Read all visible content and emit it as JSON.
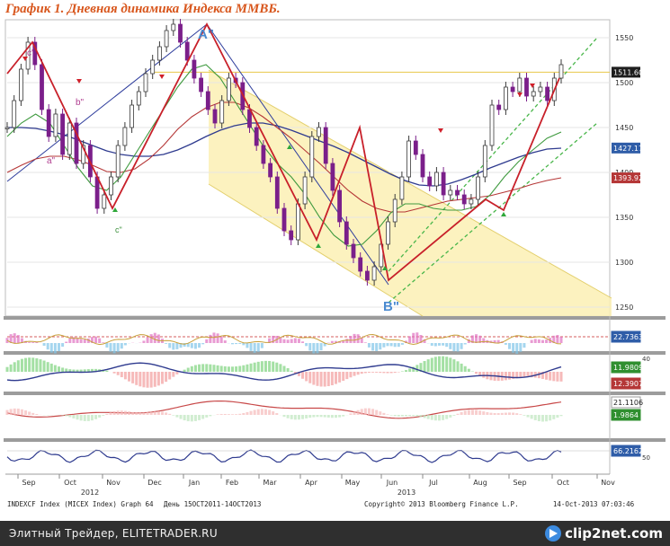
{
  "title": "График 1.   Дневная динамика Индекса ММВБ.",
  "footer": {
    "caption": "Элитный Трейдер, ELITETRADER.RU",
    "logo": "clip2net.com"
  },
  "bloomberg": {
    "left": "INDEXCF Index (MICEX Index) Graph 64",
    "mid": "День 15OCT2011-14OCT2013",
    "copy": "Copyright© 2013 Bloomberg Finance L.P.",
    "right": "14-Oct-2013 07:03:46"
  },
  "annotations": {
    "a_top": "A\"",
    "b_bottom": "B\"",
    "c_small": "c'",
    "c_low": "c\"",
    "b_small": "b\"",
    "a_small": "a\""
  },
  "colors": {
    "price_up": "#3a3a3a",
    "price_down": "#7b1f8a",
    "zigzag": "#c8202a",
    "trend_blue": "#2e3d9c",
    "channel_fill": "#fbf0b4",
    "channel_green": "#49b64a",
    "ma_green": "#3f9a3f",
    "ma_red": "#b53737",
    "ma_blue": "#2f3b8f",
    "level_line": "#e8c84a"
  },
  "chart_data": {
    "type": "line",
    "title": "График 1.   Дневная динамика Индекса ММВБ.",
    "x_axis": {
      "months": [
        "Sep",
        "Oct",
        "Nov",
        "Dec",
        "Jan",
        "Feb",
        "Mar",
        "Apr",
        "May",
        "Jun",
        "Jul",
        "Aug",
        "Sep",
        "Oct",
        "Nov"
      ],
      "years": [
        "2012",
        "2013"
      ]
    },
    "y_axis": {
      "ticks": [
        1250,
        1300,
        1350,
        1400,
        1450,
        1500,
        1550
      ],
      "range": [
        1240,
        1570
      ]
    },
    "series": [
      {
        "key": "price",
        "values": [
          1450,
          1480,
          1515,
          1545,
          1520,
          1470,
          1440,
          1465,
          1420,
          1455,
          1410,
          1430,
          1395,
          1360,
          1375,
          1395,
          1430,
          1450,
          1475,
          1490,
          1510,
          1525,
          1540,
          1558,
          1565,
          1545,
          1525,
          1505,
          1490,
          1470,
          1455,
          1480,
          1505,
          1500,
          1470,
          1450,
          1430,
          1410,
          1395,
          1360,
          1335,
          1325,
          1365,
          1395,
          1440,
          1450,
          1410,
          1380,
          1345,
          1320,
          1305,
          1290,
          1280,
          1295,
          1320,
          1345,
          1370,
          1395,
          1435,
          1420,
          1395,
          1385,
          1400,
          1375,
          1380,
          1375,
          1365,
          1370,
          1395,
          1430,
          1475,
          1470,
          1495,
          1490,
          1505,
          1485,
          1490,
          1495,
          1480,
          1505,
          1520
        ]
      },
      {
        "key": "ma_blue",
        "values": [
          1450,
          1450,
          1449,
          1446,
          1442,
          1436,
          1430,
          1424,
          1420,
          1418,
          1418,
          1420,
          1425,
          1432,
          1440,
          1447,
          1452,
          1455,
          1455,
          1452,
          1447,
          1441,
          1435,
          1429,
          1422,
          1414,
          1406,
          1398,
          1391,
          1386,
          1385,
          1387,
          1392,
          1398,
          1405,
          1411,
          1417,
          1422,
          1426,
          1427
        ]
      },
      {
        "key": "ma_red",
        "values": [
          1400,
          1408,
          1415,
          1418,
          1418,
          1414,
          1408,
          1401,
          1400,
          1404,
          1415,
          1430,
          1448,
          1462,
          1472,
          1478,
          1478,
          1472,
          1462,
          1450,
          1438,
          1424,
          1410,
          1395,
          1380,
          1368,
          1360,
          1356,
          1356,
          1360,
          1364,
          1368,
          1370,
          1372,
          1374,
          1378,
          1382,
          1387,
          1391,
          1394
        ]
      },
      {
        "key": "ma_green",
        "values": [
          1440,
          1455,
          1465,
          1455,
          1430,
          1405,
          1385,
          1380,
          1395,
          1420,
          1445,
          1470,
          1495,
          1515,
          1520,
          1505,
          1480,
          1455,
          1430,
          1410,
          1395,
          1375,
          1350,
          1330,
          1318,
          1320,
          1335,
          1355,
          1365,
          1365,
          1360,
          1358,
          1358,
          1362,
          1375,
          1395,
          1412,
          1425,
          1438,
          1445
        ]
      }
    ],
    "zigzag": [
      1510,
      1545,
      1360,
      1565,
      1325,
      1450,
      1280,
      1370,
      1358,
      1505
    ],
    "level_lines": [
      1511.6
    ],
    "right_labels": [
      {
        "text": "1511.60",
        "value": 1511.6
      },
      {
        "text": "1427.17",
        "value": 1427.17
      },
      {
        "text": "1393.92",
        "value": 1393.92
      }
    ],
    "indicator_labels": [
      "22.7363",
      "11.9809",
      "12.3907",
      "21.1106",
      "1.9864",
      "66.2162"
    ],
    "indicator_ticks": [
      "40",
      "50"
    ]
  }
}
